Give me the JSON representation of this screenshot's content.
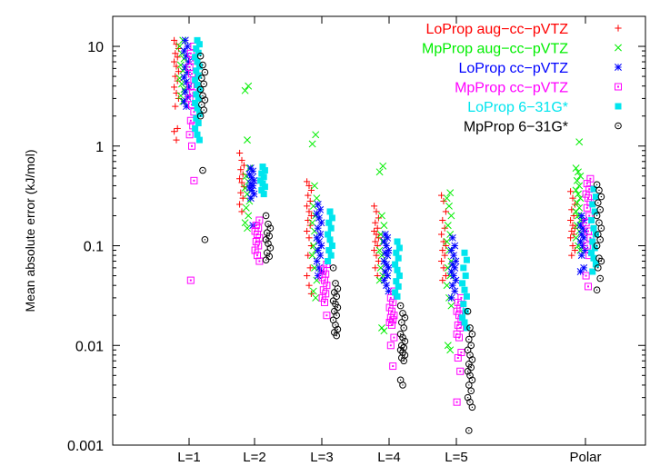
{
  "chart_data": {
    "type": "scatter",
    "ylabel": "Mean absolute error (kJ/mol)",
    "yscale": "log",
    "ylim": [
      0.001,
      20
    ],
    "yticks": [
      {
        "value": 10,
        "label": "10"
      },
      {
        "value": 1,
        "label": "1"
      },
      {
        "value": 0.1,
        "label": "0.1"
      },
      {
        "value": 0.01,
        "label": "0.01"
      },
      {
        "value": 0.001,
        "label": "0.001"
      }
    ],
    "categories": [
      "L=1",
      "L=2",
      "L=3",
      "L=4",
      "L=5",
      "Polar"
    ],
    "grid": false,
    "legend_position": "top-right",
    "series": [
      {
        "name": "LoProp aug−cc−pVTZ",
        "color": "#ff0000",
        "marker": "plus",
        "values": [
          [
            11.5,
            10.5,
            9.5,
            8.5,
            7.8,
            7.0,
            6.3,
            5.6,
            5.0,
            4.5,
            3.9,
            3.4,
            3.0,
            2.5,
            1.5,
            1.4,
            1.15
          ],
          [
            0.85,
            0.72,
            0.64,
            0.58,
            0.52,
            0.47,
            0.43,
            0.39,
            0.34,
            0.3,
            0.26,
            0.22
          ],
          [
            0.44,
            0.4,
            0.36,
            0.32,
            0.28,
            0.25,
            0.22,
            0.2,
            0.18,
            0.16,
            0.14,
            0.12,
            0.1,
            0.08,
            0.06,
            0.05,
            0.04,
            0.033
          ],
          [
            0.25,
            0.22,
            0.19,
            0.17,
            0.15,
            0.14,
            0.13,
            0.12,
            0.11,
            0.1,
            0.09,
            0.08,
            0.07,
            0.06,
            0.05
          ],
          [
            0.32,
            0.28,
            0.22,
            0.18,
            0.15,
            0.13,
            0.11,
            0.1,
            0.09,
            0.08,
            0.07,
            0.06,
            0.05,
            0.045
          ],
          [
            0.35,
            0.3,
            0.26,
            0.23,
            0.2,
            0.18,
            0.16,
            0.15,
            0.14,
            0.13,
            0.12,
            0.1,
            0.09,
            0.08
          ]
        ]
      },
      {
        "name": "MpProp aug−cc−pVTZ",
        "color": "#00ee00",
        "marker": "cross",
        "values": [
          [
            11.5,
            10.0,
            8.5,
            7.5,
            6.5,
            5.7,
            4.8,
            4.2,
            3.7,
            3.2,
            2.8
          ],
          [
            4.0,
            3.6,
            1.15,
            0.6,
            0.5,
            0.44,
            0.38,
            0.33,
            0.28,
            0.24,
            0.2,
            0.17,
            0.15
          ],
          [
            1.3,
            1.05,
            0.4,
            0.3,
            0.25,
            0.2,
            0.17,
            0.14,
            0.12,
            0.1,
            0.09,
            0.08,
            0.06,
            0.045,
            0.035,
            0.03
          ],
          [
            0.63,
            0.55,
            0.2,
            0.16,
            0.13,
            0.11,
            0.09,
            0.08,
            0.07,
            0.06,
            0.05,
            0.045,
            0.015,
            0.014
          ],
          [
            0.34,
            0.3,
            0.25,
            0.2,
            0.16,
            0.13,
            0.11,
            0.09,
            0.07,
            0.06,
            0.05,
            0.04,
            0.03,
            0.025,
            0.01,
            0.009
          ],
          [
            1.1,
            0.6,
            0.55,
            0.5,
            0.45,
            0.4,
            0.36,
            0.33,
            0.3,
            0.27,
            0.24,
            0.22,
            0.2,
            0.18,
            0.16,
            0.14,
            0.12,
            0.1,
            0.09
          ]
        ]
      },
      {
        "name": "LoProp cc−pVTZ",
        "color": "#0000ff",
        "marker": "star",
        "values": [
          [
            11.5,
            10.0,
            9.0,
            8.0,
            7.0,
            6.2,
            5.5,
            4.9,
            4.4,
            3.9,
            3.5,
            3.1,
            2.8,
            2.5
          ],
          [
            0.6,
            0.56,
            0.52,
            0.48,
            0.45,
            0.42,
            0.4,
            0.38,
            0.36,
            0.33,
            0.3,
            0.16
          ],
          [
            0.26,
            0.23,
            0.21,
            0.19,
            0.17,
            0.15,
            0.13,
            0.12,
            0.11,
            0.1,
            0.09,
            0.08,
            0.07,
            0.06,
            0.055,
            0.05
          ],
          [
            0.13,
            0.12,
            0.11,
            0.1,
            0.09,
            0.085,
            0.08,
            0.07,
            0.065,
            0.06,
            0.055,
            0.05,
            0.045,
            0.04,
            0.035
          ],
          [
            0.12,
            0.1,
            0.09,
            0.08,
            0.07,
            0.065,
            0.06,
            0.055,
            0.05,
            0.045,
            0.04,
            0.035,
            0.03
          ],
          [
            0.2,
            0.18,
            0.16,
            0.15,
            0.14,
            0.13,
            0.12,
            0.11,
            0.1,
            0.09,
            0.08,
            0.06,
            0.055
          ]
        ]
      },
      {
        "name": "MpProp cc−pVTZ",
        "color": "#ff00ff",
        "marker": "box",
        "values": [
          [
            10.0,
            8.5,
            7.2,
            6.2,
            5.3,
            4.6,
            4.0,
            3.4,
            3.0,
            2.6,
            2.2,
            1.8,
            1.6,
            1.3,
            1.0,
            0.45,
            0.045
          ],
          [
            0.18,
            0.16,
            0.15,
            0.14,
            0.13,
            0.12,
            0.11,
            0.1,
            0.09,
            0.08,
            0.07
          ],
          [
            0.065,
            0.058,
            0.052,
            0.048,
            0.045,
            0.04,
            0.036,
            0.033,
            0.03,
            0.027,
            0.02
          ],
          [
            0.035,
            0.03,
            0.027,
            0.024,
            0.022,
            0.02,
            0.019,
            0.018,
            0.017,
            0.016,
            0.012,
            0.01,
            0.0062
          ],
          [
            0.03,
            0.027,
            0.024,
            0.022,
            0.02,
            0.018,
            0.016,
            0.015,
            0.013,
            0.012,
            0.0085,
            0.0075,
            0.0055,
            0.0027
          ],
          [
            0.47,
            0.42,
            0.37,
            0.33,
            0.3,
            0.27,
            0.24,
            0.2,
            0.17,
            0.14,
            0.12,
            0.1,
            0.08,
            0.05,
            0.039
          ]
        ]
      },
      {
        "name": "LoProp 6−31G*",
        "color": "#00e5ee",
        "marker": "bar",
        "values": [
          [
            11.5,
            10.5,
            9.5,
            8.6,
            7.8,
            7.0,
            6.3,
            5.7,
            5.1,
            4.6,
            4.1,
            3.7,
            3.3,
            3.0,
            2.7,
            2.4,
            2.1,
            1.9,
            1.7,
            1.5,
            1.3,
            1.15
          ],
          [
            0.62,
            0.57,
            0.53,
            0.49,
            0.45,
            0.42,
            0.39,
            0.36,
            0.33
          ],
          [
            0.22,
            0.19,
            0.17,
            0.15,
            0.13,
            0.115,
            0.1,
            0.09,
            0.08,
            0.07
          ],
          [
            0.11,
            0.095,
            0.085,
            0.075,
            0.065,
            0.057,
            0.05,
            0.044,
            0.039,
            0.034,
            0.031
          ],
          [
            0.085,
            0.072,
            0.06,
            0.05,
            0.042,
            0.036,
            0.031,
            0.026,
            0.022,
            0.019,
            0.017,
            0.015
          ],
          [
            0.37,
            0.31,
            0.26,
            0.22,
            0.18,
            0.15,
            0.13,
            0.11,
            0.095,
            0.085,
            0.075,
            0.065,
            0.055
          ]
        ]
      },
      {
        "name": "MpProp 6−31G*",
        "color": "#000000",
        "marker": "circle",
        "values": [
          [
            8.0,
            6.5,
            5.5,
            4.8,
            4.2,
            3.7,
            3.2,
            2.9,
            2.6,
            2.3,
            2.0,
            0.57,
            0.115
          ],
          [
            0.2,
            0.165,
            0.15,
            0.135,
            0.125,
            0.115,
            0.105,
            0.095,
            0.085,
            0.078,
            0.072
          ],
          [
            0.06,
            0.042,
            0.037,
            0.034,
            0.031,
            0.028,
            0.026,
            0.024,
            0.022,
            0.02,
            0.018,
            0.016,
            0.0145,
            0.0135,
            0.0125
          ],
          [
            0.025,
            0.021,
            0.019,
            0.017,
            0.015,
            0.013,
            0.012,
            0.011,
            0.01,
            0.0095,
            0.009,
            0.0085,
            0.008,
            0.0075,
            0.007,
            0.0045,
            0.004
          ],
          [
            0.022,
            0.015,
            0.013,
            0.0115,
            0.01,
            0.009,
            0.008,
            0.0072,
            0.0065,
            0.006,
            0.0055,
            0.005,
            0.0045,
            0.004,
            0.0035,
            0.003,
            0.0027,
            0.0024,
            0.0014
          ],
          [
            0.41,
            0.36,
            0.31,
            0.27,
            0.23,
            0.2,
            0.17,
            0.15,
            0.13,
            0.115,
            0.1,
            0.075,
            0.07,
            0.06,
            0.047,
            0.036
          ]
        ]
      }
    ]
  }
}
